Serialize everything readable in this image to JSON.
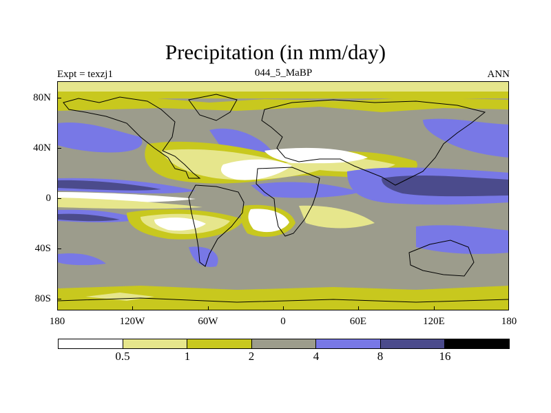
{
  "title": "Precipitation (in mm/day)",
  "experiment_label": "Expt = texzj1",
  "run_label": "044_5_MaBP",
  "season_label": "ANN",
  "colors": {
    "lt05": "#ffffff",
    "c05_1": "#e6e68c",
    "c1_2": "#c8c81e",
    "c2_4": "#9c9c8c",
    "c4_8": "#7878e6",
    "c8_16": "#4b4b8c",
    "gt16": "#000000",
    "coast": "#000000"
  },
  "map": {
    "y_axis_labels": [
      "80N",
      "40N",
      "0",
      "40S",
      "80S"
    ],
    "x_axis_labels": [
      "180",
      "120W",
      "60W",
      "0",
      "60E",
      "120E",
      "180"
    ]
  },
  "colorbar": {
    "labels": [
      "0.5",
      "1",
      "2",
      "4",
      "8",
      "16"
    ],
    "boxes": [
      "lt05",
      "c05_1",
      "c1_2",
      "c2_4",
      "c4_8",
      "c8_16",
      "gt16"
    ]
  }
}
